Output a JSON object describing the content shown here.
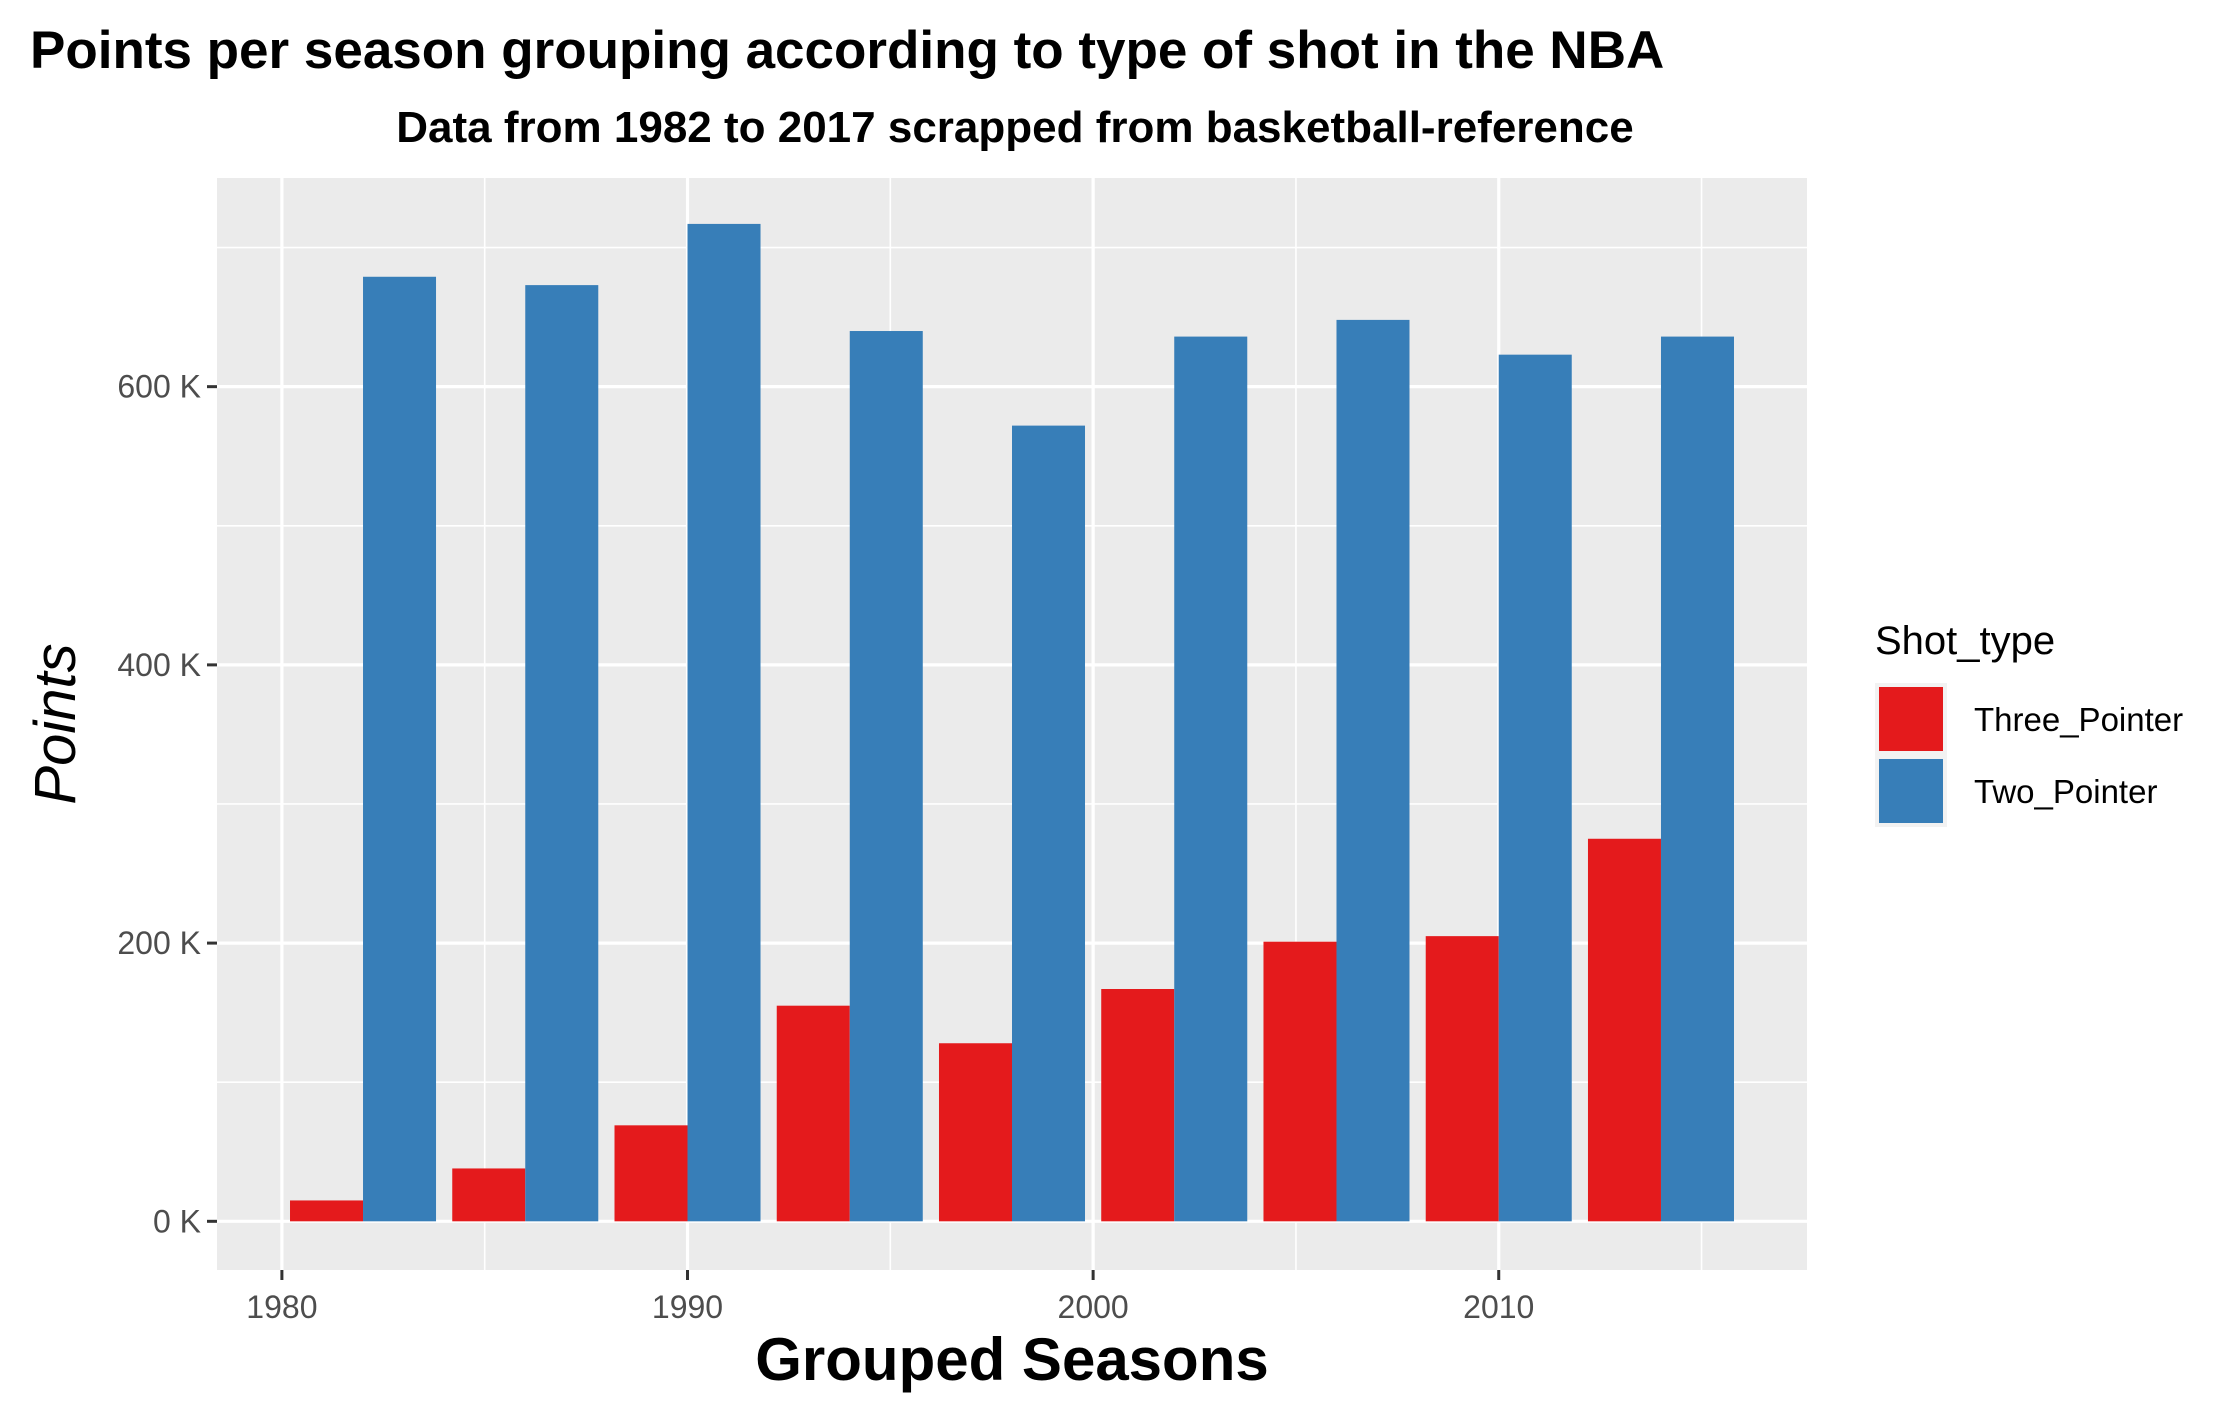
{
  "chart_data": {
    "type": "bar",
    "title": "Points per season grouping according to type of shot in the NBA",
    "subtitle": "Data from 1982 to 2017 scrapped from basketball-reference",
    "xlabel": "Grouped Seasons",
    "ylabel": "Points",
    "x": [
      1982,
      1986,
      1990,
      1994,
      1998,
      2002,
      2006,
      2010,
      2014
    ],
    "xlim": [
      1978.4,
      2017.6
    ],
    "ylim": [
      -35000,
      750000
    ],
    "x_ticks": [
      1980,
      1990,
      2000,
      2010
    ],
    "y_ticks": [
      0,
      200000,
      400000,
      600000
    ],
    "y_tick_labels": [
      "0 K",
      "200 K",
      "400 K",
      "600 K"
    ],
    "grid": true,
    "legend": {
      "title": "Shot_type",
      "position": "right"
    },
    "series": [
      {
        "name": "Three_Pointer",
        "color": "#E41A1C",
        "values": [
          15000,
          38000,
          69000,
          155000,
          128000,
          167000,
          201000,
          205000,
          275000
        ]
      },
      {
        "name": "Two_Pointer",
        "color": "#377EB8",
        "values": [
          679000,
          673000,
          717000,
          640000,
          572000,
          636000,
          648000,
          623000,
          636000
        ]
      }
    ]
  }
}
